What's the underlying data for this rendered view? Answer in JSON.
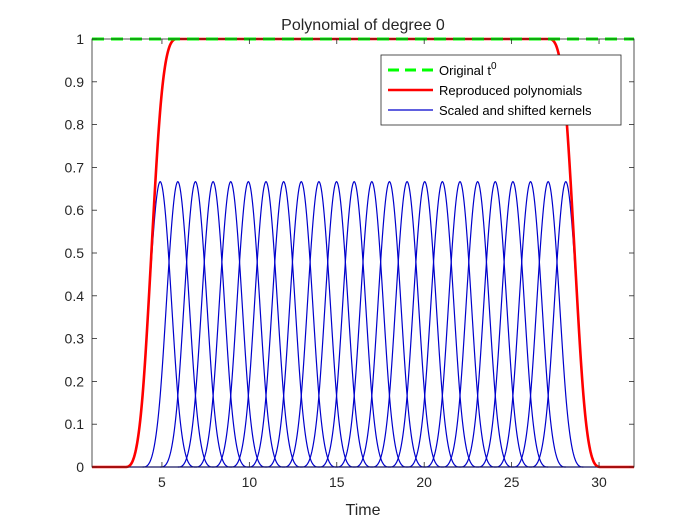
{
  "chart_data": {
    "type": "line",
    "title": "Polynomial of degree 0",
    "xlabel": "Time",
    "ylabel": "",
    "xlim": [
      1,
      32
    ],
    "ylim": [
      0,
      1
    ],
    "xticks": [
      5,
      10,
      15,
      20,
      25,
      30
    ],
    "yticks": [
      0,
      0.1,
      0.2,
      0.3,
      0.4,
      0.5,
      0.6,
      0.7,
      0.8,
      0.9,
      1
    ],
    "ytick_labels": [
      "0",
      "0.1",
      "0.2",
      "0.3",
      "0.4",
      "0.5",
      "0.6",
      "0.7",
      "0.8",
      "0.9",
      "1"
    ],
    "grid": false,
    "legend_position": "top-right",
    "legend": [
      {
        "key": "original",
        "label": "Original t",
        "superscript": "0"
      },
      {
        "key": "reproduced",
        "label": "Reproduced polynomials"
      },
      {
        "key": "kernels",
        "label": "Scaled and shifted kernels"
      }
    ],
    "series": [
      {
        "key": "original",
        "color": "#00ff00",
        "style": "dashed",
        "description_value": 1
      },
      {
        "key": "reproduced",
        "color": "#ff0000",
        "style": "solid",
        "rise": [
          3.5,
          6
        ],
        "fall": [
          27,
          29.5
        ],
        "max": 1
      },
      {
        "key": "kernels",
        "color": "#0000cc",
        "style": "solid",
        "count": 24,
        "peak": 0.6667,
        "first_center": 4.9,
        "last_center": 28.1,
        "support": [
          -2,
          2
        ]
      }
    ]
  }
}
